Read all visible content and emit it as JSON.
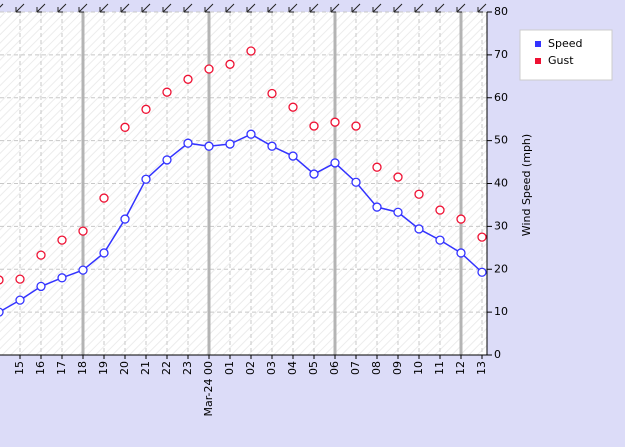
{
  "chart_data": {
    "type": "line",
    "categories": [
      null,
      "15",
      "16",
      "17",
      "18",
      "19",
      "20",
      "21",
      "22",
      "23",
      "Mar-24 00",
      "01",
      "02",
      "03",
      "04",
      "05",
      "06",
      "07",
      "08",
      "09",
      "10",
      "11",
      "12",
      "13"
    ],
    "series": [
      {
        "name": "Speed",
        "color": "#3333ff",
        "values": [
          10,
          12.8,
          16,
          18,
          19.8,
          23.8,
          31.7,
          41,
          45.5,
          49.4,
          48.7,
          49.2,
          51.5,
          48.7,
          46.4,
          42.2,
          44.8,
          40.3,
          34.5,
          33.3,
          29.4,
          26.8,
          23.8,
          19.3
        ]
      },
      {
        "name": "Gust",
        "color": "#ee1133",
        "values": [
          17.5,
          17.7,
          23.3,
          26.8,
          28.9,
          36.6,
          53.1,
          57.3,
          61.3,
          64.3,
          66.7,
          67.8,
          70.9,
          61,
          57.8,
          53.4,
          54.3,
          53.4,
          43.8,
          41.5,
          37.5,
          33.8,
          31.7,
          27.5
        ]
      }
    ],
    "ylabel": "Wind Speed (mph)",
    "ylim": [
      0,
      80
    ],
    "yticks": [
      0,
      10,
      20,
      30,
      40,
      50,
      60,
      70,
      80
    ],
    "grid": true,
    "legend": "top-right"
  }
}
